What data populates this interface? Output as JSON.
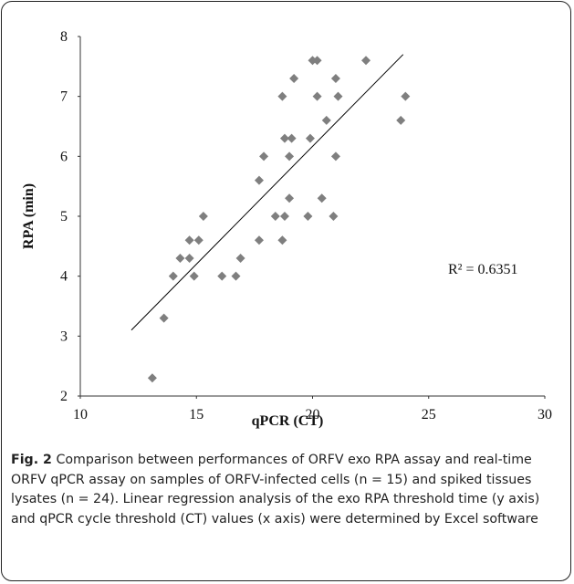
{
  "chart_data": {
    "type": "scatter",
    "x_label": "qPCR (CT)",
    "y_label": "RPA (min)",
    "x": [
      13.1,
      13.6,
      14.0,
      14.3,
      14.7,
      14.7,
      14.9,
      15.1,
      15.3,
      16.1,
      16.7,
      16.9,
      17.7,
      17.7,
      17.9,
      18.4,
      18.7,
      18.7,
      18.8,
      18.8,
      19.0,
      19.0,
      19.1,
      19.2,
      19.8,
      19.9,
      20.0,
      20.2,
      20.2,
      20.4,
      20.6,
      20.9,
      21.0,
      21.0,
      21.1,
      22.3,
      23.8,
      24.0
    ],
    "values": [
      2.3,
      3.3,
      4.0,
      4.3,
      4.3,
      4.6,
      4.0,
      4.6,
      5.0,
      4.0,
      4.0,
      4.3,
      4.6,
      5.6,
      6.0,
      5.0,
      4.6,
      7.0,
      5.0,
      6.3,
      6.0,
      5.3,
      6.3,
      7.3,
      5.0,
      6.3,
      7.6,
      7.6,
      7.0,
      5.3,
      6.6,
      5.0,
      6.0,
      7.3,
      7.0,
      7.6,
      6.6,
      7.0
    ],
    "color": "#7f7f7f",
    "trendline": {
      "x": [
        12.2,
        23.9
      ],
      "y": [
        3.1,
        7.7
      ],
      "color": "#000000"
    },
    "annotation": "R² = 0.6351",
    "xlim": [
      10,
      30
    ],
    "xticks": [
      10,
      15,
      20,
      25,
      30
    ],
    "ylim": [
      2,
      8
    ],
    "yticks": [
      2,
      3,
      4,
      5,
      6,
      7,
      8
    ],
    "grid": false
  },
  "caption": {
    "label": "Fig. 2",
    "text": "Comparison between performances of ORFV exo RPA assay and real-time ORFV qPCR assay on samples of ORFV-infected cells (n = 15) and spiked tissues lysates (n = 24). Linear regression analysis of the exo RPA threshold time (y axis) and qPCR cycle threshold (CT) values (x axis) were determined by Excel software"
  }
}
